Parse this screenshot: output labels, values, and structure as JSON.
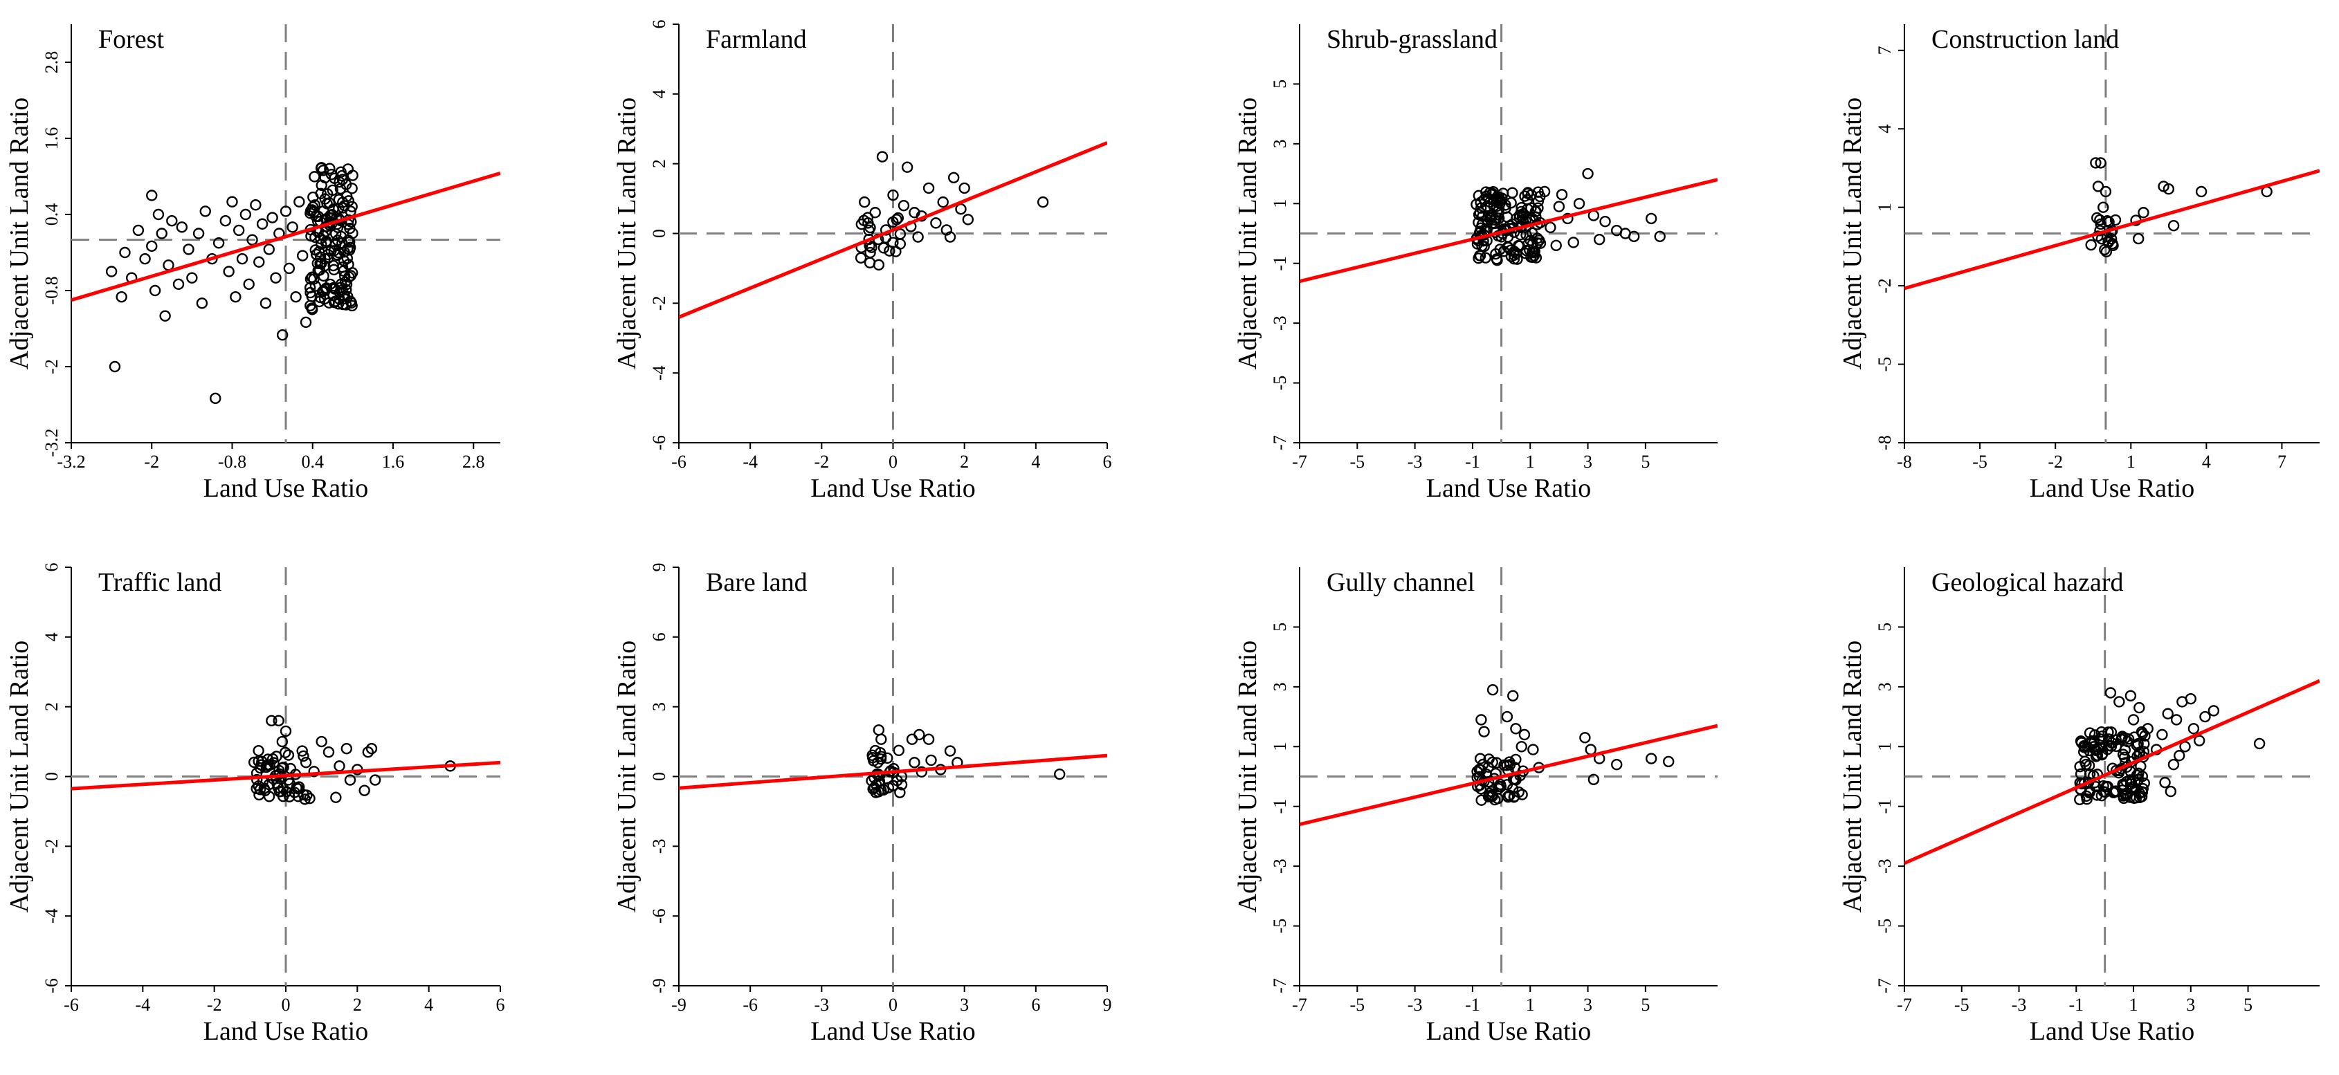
{
  "figure": {
    "x_title": "Land Use Ratio",
    "y_title": "Adjacent Unit Land Ratio",
    "fit_color": "#ff0000",
    "ref_color": "#808080"
  },
  "chart_data": [
    {
      "type": "scatter",
      "title": "Forest",
      "xlabel": "Land Use Ratio",
      "ylabel": "Adjacent Unit Land Ratio",
      "xlim": [
        -3.2,
        3.2
      ],
      "ylim": [
        -3.2,
        3.4
      ],
      "xticks": [
        -3.2,
        -2,
        -0.8,
        0.4,
        1.6,
        2.8
      ],
      "xtick_labels": [
        "-3.2",
        "-2",
        "-0.8",
        "0.4",
        "1.6",
        "2.8"
      ],
      "yticks": [
        -3.2,
        -2,
        -0.8,
        0.4,
        1.6,
        2.8
      ],
      "ytick_labels": [
        "-3.2",
        "-2",
        "-0.8",
        "0.4",
        "1.6",
        "2.8"
      ],
      "x_ref": 0,
      "y_ref": 0,
      "fit": {
        "x": [
          -3.2,
          3.2
        ],
        "y": [
          -0.95,
          1.05
        ]
      },
      "cluster": {
        "x": [
          0.35,
          1.0
        ],
        "y": [
          -1.1,
          1.15
        ],
        "n": 160,
        "seed": 11
      },
      "points": [
        [
          -2.6,
          -0.5
        ],
        [
          -2.55,
          -2.0
        ],
        [
          -2.45,
          -0.9
        ],
        [
          -2.4,
          -0.2
        ],
        [
          -2.3,
          -0.6
        ],
        [
          -2.2,
          0.15
        ],
        [
          -2.1,
          -0.3
        ],
        [
          -2.0,
          -0.1
        ],
        [
          -2.0,
          0.7
        ],
        [
          -1.95,
          -0.8
        ],
        [
          -1.9,
          0.4
        ],
        [
          -1.85,
          0.1
        ],
        [
          -1.8,
          -1.2
        ],
        [
          -1.75,
          -0.4
        ],
        [
          -1.7,
          0.3
        ],
        [
          -1.6,
          -0.7
        ],
        [
          -1.55,
          0.2
        ],
        [
          -1.45,
          -0.15
        ],
        [
          -1.4,
          -0.6
        ],
        [
          -1.3,
          0.1
        ],
        [
          -1.25,
          -1.0
        ],
        [
          -1.2,
          0.45
        ],
        [
          -1.1,
          -0.3
        ],
        [
          -1.05,
          -2.5
        ],
        [
          -1.0,
          -0.05
        ],
        [
          -0.9,
          0.3
        ],
        [
          -0.85,
          -0.5
        ],
        [
          -0.8,
          0.6
        ],
        [
          -0.75,
          -0.9
        ],
        [
          -0.7,
          0.15
        ],
        [
          -0.65,
          -0.3
        ],
        [
          -0.6,
          0.4
        ],
        [
          -0.55,
          -0.7
        ],
        [
          -0.5,
          0.0
        ],
        [
          -0.45,
          0.55
        ],
        [
          -0.4,
          -0.35
        ],
        [
          -0.35,
          0.25
        ],
        [
          -0.3,
          -1.0
        ],
        [
          -0.25,
          -0.15
        ],
        [
          -0.2,
          0.35
        ],
        [
          -0.15,
          -0.6
        ],
        [
          -0.1,
          0.1
        ],
        [
          -0.05,
          -1.5
        ],
        [
          0.0,
          0.45
        ],
        [
          0.05,
          -0.45
        ],
        [
          0.1,
          0.2
        ],
        [
          0.15,
          -0.9
        ],
        [
          0.2,
          0.6
        ],
        [
          0.25,
          -0.25
        ],
        [
          0.3,
          -1.3
        ]
      ]
    },
    {
      "type": "scatter",
      "title": "Farmland",
      "xlabel": "Land Use Ratio",
      "ylabel": "Adjacent Unit Land Ratio",
      "xlim": [
        -6,
        6
      ],
      "ylim": [
        -6,
        6
      ],
      "xticks": [
        -6,
        -4,
        -2,
        0,
        2,
        4,
        6
      ],
      "xtick_labels": [
        "-6",
        "-4",
        "-2",
        "0",
        "2",
        "4",
        "6"
      ],
      "yticks": [
        -6,
        -4,
        -2,
        0,
        2,
        4,
        6
      ],
      "ytick_labels": [
        "-6",
        "-4",
        "-2",
        "0",
        "2",
        "4",
        "6"
      ],
      "x_ref": 0,
      "y_ref": 0,
      "fit": {
        "x": [
          -6,
          6
        ],
        "y": [
          -2.4,
          2.6
        ]
      },
      "cluster": {
        "x": [
          -1.0,
          0.4
        ],
        "y": [
          -0.9,
          0.6
        ],
        "n": 18,
        "seed": 23
      },
      "points": [
        [
          -0.9,
          -0.7
        ],
        [
          -0.8,
          0.9
        ],
        [
          -0.7,
          0.3
        ],
        [
          -0.6,
          -0.4
        ],
        [
          -0.5,
          0.6
        ],
        [
          -0.4,
          -0.9
        ],
        [
          -0.3,
          2.2
        ],
        [
          -0.2,
          0.1
        ],
        [
          -0.1,
          -0.5
        ],
        [
          0.0,
          1.1
        ],
        [
          0.1,
          0.4
        ],
        [
          0.2,
          -0.3
        ],
        [
          0.3,
          0.8
        ],
        [
          0.4,
          1.9
        ],
        [
          0.5,
          0.2
        ],
        [
          0.6,
          0.6
        ],
        [
          0.7,
          -0.1
        ],
        [
          0.8,
          0.5
        ],
        [
          1.0,
          1.3
        ],
        [
          1.2,
          0.3
        ],
        [
          1.4,
          0.9
        ],
        [
          1.5,
          0.1
        ],
        [
          1.6,
          -0.1
        ],
        [
          1.7,
          1.6
        ],
        [
          1.9,
          0.7
        ],
        [
          2.0,
          1.3
        ],
        [
          2.1,
          0.4
        ],
        [
          4.2,
          0.9
        ]
      ]
    },
    {
      "type": "scatter",
      "title": "Shrub-grassland",
      "xlabel": "Land Use Ratio",
      "ylabel": "Adjacent Unit Land Ratio",
      "xlim": [
        -7,
        7.5
      ],
      "ylim": [
        -7,
        7
      ],
      "xticks": [
        -7,
        -5,
        -3,
        -1,
        1,
        3,
        5
      ],
      "xtick_labels": [
        "-7",
        "-5",
        "-3",
        "-1",
        "1",
        "3",
        "5"
      ],
      "yticks": [
        -7,
        -5,
        -3,
        -1,
        1,
        3,
        5
      ],
      "ytick_labels": [
        "-7",
        "-5",
        "-3",
        "-1",
        "1",
        "3",
        "5"
      ],
      "x_ref": 0,
      "y_ref": 0,
      "fit": {
        "x": [
          -7,
          7.5
        ],
        "y": [
          -1.6,
          1.8
        ]
      },
      "cluster": {
        "x": [
          -0.9,
          1.4
        ],
        "y": [
          -0.9,
          1.4
        ],
        "n": 150,
        "seed": 37
      },
      "points": [
        [
          1.5,
          1.4
        ],
        [
          1.7,
          0.2
        ],
        [
          1.9,
          -0.4
        ],
        [
          2.0,
          0.9
        ],
        [
          2.1,
          1.3
        ],
        [
          2.3,
          0.5
        ],
        [
          2.5,
          -0.3
        ],
        [
          2.7,
          1.0
        ],
        [
          3.0,
          2.0
        ],
        [
          3.2,
          0.6
        ],
        [
          3.4,
          -0.2
        ],
        [
          3.6,
          0.4
        ],
        [
          4.0,
          0.1
        ],
        [
          4.3,
          0.0
        ],
        [
          4.6,
          -0.1
        ],
        [
          5.2,
          0.5
        ],
        [
          5.5,
          -0.1
        ]
      ]
    },
    {
      "type": "scatter",
      "title": "Construction land",
      "xlabel": "Land Use Ratio",
      "ylabel": "Adjacent Unit Land Ratio",
      "xlim": [
        -8,
        8.5
      ],
      "ylim": [
        -8,
        8
      ],
      "xticks": [
        -8,
        -5,
        -2,
        1,
        4,
        7
      ],
      "xtick_labels": [
        "-8",
        "-5",
        "-2",
        "1",
        "4",
        "7"
      ],
      "yticks": [
        -8,
        -5,
        -2,
        1,
        4,
        7
      ],
      "ytick_labels": [
        "-8",
        "-5",
        "-2",
        "1",
        "4",
        "7"
      ],
      "x_ref": 0,
      "y_ref": 0,
      "fit": {
        "x": [
          -8,
          8.5
        ],
        "y": [
          -2.1,
          2.4
        ]
      },
      "cluster": {
        "x": [
          -0.6,
          0.4
        ],
        "y": [
          -0.7,
          0.6
        ],
        "n": 20,
        "seed": 41
      },
      "points": [
        [
          -0.4,
          2.7
        ],
        [
          -0.3,
          1.8
        ],
        [
          -0.2,
          2.7
        ],
        [
          -0.1,
          1.0
        ],
        [
          0.0,
          1.6
        ],
        [
          0.1,
          -0.3
        ],
        [
          1.2,
          0.5
        ],
        [
          1.3,
          -0.2
        ],
        [
          1.5,
          0.8
        ],
        [
          2.3,
          1.8
        ],
        [
          2.5,
          1.7
        ],
        [
          2.7,
          0.3
        ],
        [
          3.8,
          1.6
        ],
        [
          6.4,
          1.6
        ]
      ]
    },
    {
      "type": "scatter",
      "title": "Traffic land",
      "xlabel": "Land Use Ratio",
      "ylabel": "Adjacent Unit Land Ratio",
      "xlim": [
        -6,
        6
      ],
      "ylim": [
        -6,
        6
      ],
      "xticks": [
        -6,
        -4,
        -2,
        0,
        2,
        4,
        6
      ],
      "xtick_labels": [
        "-6",
        "-4",
        "-2",
        "0",
        "2",
        "4",
        "6"
      ],
      "yticks": [
        -6,
        -4,
        -2,
        0,
        2,
        4,
        6
      ],
      "ytick_labels": [
        "-6",
        "-4",
        "-2",
        "0",
        "2",
        "4",
        "6"
      ],
      "x_ref": 0,
      "y_ref": 0,
      "fit": {
        "x": [
          -6,
          6
        ],
        "y": [
          -0.35,
          0.4
        ]
      },
      "cluster": {
        "x": [
          -0.9,
          0.8
        ],
        "y": [
          -0.7,
          0.8
        ],
        "n": 60,
        "seed": 53
      },
      "points": [
        [
          -0.4,
          1.6
        ],
        [
          -0.2,
          1.6
        ],
        [
          0.0,
          1.3
        ],
        [
          -0.1,
          1.0
        ],
        [
          1.0,
          1.0
        ],
        [
          1.2,
          0.7
        ],
        [
          1.4,
          -0.6
        ],
        [
          1.5,
          0.3
        ],
        [
          1.7,
          0.8
        ],
        [
          1.8,
          -0.1
        ],
        [
          2.0,
          0.2
        ],
        [
          2.2,
          -0.4
        ],
        [
          2.3,
          0.7
        ],
        [
          2.4,
          0.8
        ],
        [
          2.5,
          -0.1
        ],
        [
          4.6,
          0.3
        ]
      ]
    },
    {
      "type": "scatter",
      "title": "Bare land",
      "xlabel": "Land Use Ratio",
      "ylabel": "Adjacent Unit Land Ratio",
      "xlim": [
        -9,
        9
      ],
      "ylim": [
        -9,
        9
      ],
      "xticks": [
        -9,
        -6,
        -3,
        0,
        3,
        6,
        9
      ],
      "xtick_labels": [
        "-9",
        "-6",
        "-3",
        "0",
        "3",
        "6",
        "9"
      ],
      "yticks": [
        -9,
        -6,
        -3,
        0,
        3,
        6,
        9
      ],
      "ytick_labels": [
        "-9",
        "-6",
        "-3",
        "0",
        "3",
        "6",
        "9"
      ],
      "x_ref": 0,
      "y_ref": 0,
      "fit": {
        "x": [
          -9,
          9
        ],
        "y": [
          -0.5,
          0.9
        ]
      },
      "cluster": {
        "x": [
          -0.9,
          0.4
        ],
        "y": [
          -0.7,
          1.4
        ],
        "n": 35,
        "seed": 67
      },
      "points": [
        [
          -0.6,
          2.0
        ],
        [
          -0.5,
          1.6
        ],
        [
          0.8,
          1.6
        ],
        [
          1.1,
          1.8
        ],
        [
          1.5,
          1.6
        ],
        [
          0.9,
          0.6
        ],
        [
          1.2,
          0.2
        ],
        [
          1.6,
          0.7
        ],
        [
          2.0,
          0.3
        ],
        [
          2.4,
          1.1
        ],
        [
          2.7,
          0.6
        ],
        [
          7.0,
          0.1
        ]
      ]
    },
    {
      "type": "scatter",
      "title": "Gully channel",
      "xlabel": "Land Use Ratio",
      "ylabel": "Adjacent Unit Land Ratio",
      "xlim": [
        -7,
        7.5
      ],
      "ylim": [
        -7,
        7
      ],
      "xticks": [
        -7,
        -5,
        -3,
        -1,
        1,
        3,
        5
      ],
      "xtick_labels": [
        "-7",
        "-5",
        "-3",
        "-1",
        "1",
        "3",
        "5"
      ],
      "yticks": [
        -7,
        -5,
        -3,
        -1,
        1,
        3,
        5
      ],
      "ytick_labels": [
        "-7",
        "-5",
        "-3",
        "-1",
        "1",
        "3",
        "5"
      ],
      "x_ref": 0,
      "y_ref": 0,
      "fit": {
        "x": [
          -7,
          7.5
        ],
        "y": [
          -1.6,
          1.7
        ]
      },
      "cluster": {
        "x": [
          -0.9,
          0.8
        ],
        "y": [
          -0.8,
          0.6
        ],
        "n": 55,
        "seed": 79
      },
      "points": [
        [
          -0.7,
          1.9
        ],
        [
          -0.6,
          1.5
        ],
        [
          -0.3,
          2.9
        ],
        [
          0.2,
          2.0
        ],
        [
          0.4,
          2.7
        ],
        [
          0.5,
          1.6
        ],
        [
          0.7,
          1.0
        ],
        [
          0.8,
          1.4
        ],
        [
          1.1,
          0.9
        ],
        [
          1.3,
          0.3
        ],
        [
          2.9,
          1.3
        ],
        [
          3.1,
          0.9
        ],
        [
          3.2,
          -0.1
        ],
        [
          3.4,
          0.6
        ],
        [
          4.0,
          0.4
        ],
        [
          5.2,
          0.6
        ],
        [
          5.8,
          0.5
        ]
      ]
    },
    {
      "type": "scatter",
      "title": "Geological hazard",
      "xlabel": "Land Use Ratio",
      "ylabel": "Adjacent Unit Land Ratio",
      "xlim": [
        -7,
        7.5
      ],
      "ylim": [
        -7,
        7
      ],
      "xticks": [
        -7,
        -5,
        -3,
        -1,
        1,
        3,
        5
      ],
      "xtick_labels": [
        "-7",
        "-5",
        "-3",
        "-1",
        "1",
        "3",
        "5"
      ],
      "yticks": [
        -7,
        -5,
        -3,
        -1,
        1,
        3,
        5
      ],
      "ytick_labels": [
        "-7",
        "-5",
        "-3",
        "-1",
        "1",
        "3",
        "5"
      ],
      "x_ref": 0,
      "y_ref": 0,
      "fit": {
        "x": [
          -7,
          7.5
        ],
        "y": [
          -2.9,
          3.2
        ]
      },
      "cluster": {
        "x": [
          -0.9,
          1.4
        ],
        "y": [
          -0.8,
          1.5
        ],
        "n": 130,
        "seed": 97
      },
      "points": [
        [
          0.2,
          2.8
        ],
        [
          0.5,
          2.5
        ],
        [
          0.9,
          2.7
        ],
        [
          1.0,
          1.9
        ],
        [
          1.2,
          2.3
        ],
        [
          1.5,
          1.6
        ],
        [
          1.8,
          0.9
        ],
        [
          2.0,
          1.4
        ],
        [
          2.2,
          2.1
        ],
        [
          2.4,
          0.4
        ],
        [
          2.5,
          1.9
        ],
        [
          2.7,
          2.5
        ],
        [
          2.8,
          1.0
        ],
        [
          3.0,
          2.6
        ],
        [
          3.1,
          1.6
        ],
        [
          3.3,
          1.2
        ],
        [
          3.5,
          2.0
        ],
        [
          3.8,
          2.2
        ],
        [
          2.1,
          -0.2
        ],
        [
          2.3,
          -0.5
        ],
        [
          2.6,
          0.7
        ],
        [
          5.4,
          1.1
        ]
      ]
    }
  ]
}
